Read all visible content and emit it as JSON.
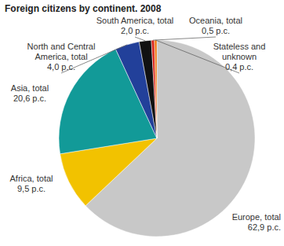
{
  "chart_data": {
    "type": "pie",
    "title": "Foreign citizens by continent. 2008",
    "categories": [
      "Europe, total",
      "Africa, total",
      "Asia, total",
      "North and Central\nAmerica, total",
      "South America, total",
      "Oceania, total",
      "Stateless and\nunknown"
    ],
    "values": [
      62.9,
      9.5,
      20.6,
      4.0,
      2.0,
      0.5,
      0.4
    ],
    "value_labels": [
      "62,9 p.c.",
      "9,5 p.c.",
      "20,6 p.c.",
      "4,0 p.c.",
      "2,0 p.c.",
      "0,5 p.c.",
      "0,4 p.c."
    ],
    "colors": [
      "#c8c8c8",
      "#f2c200",
      "#129a98",
      "#22409a",
      "#111111",
      "#d8261c",
      "#f07a12"
    ],
    "data_labels": true
  }
}
